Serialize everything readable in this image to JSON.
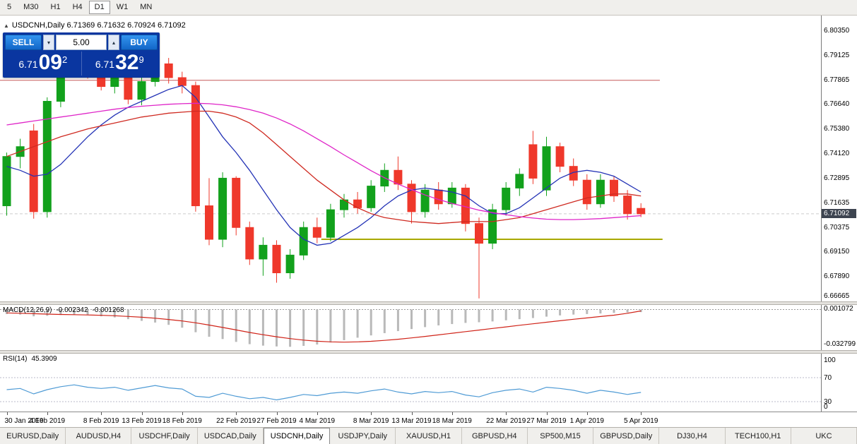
{
  "colors": {
    "candle_up": "#12a11c",
    "candle_down": "#ef382b",
    "ma_fast": "#2433b6",
    "ma_mid": "#cf2a21",
    "ma_slow": "#df25c8",
    "resistance_line": "#c65a5a",
    "support_line": "#a8a800",
    "macd_bar": "#b9b9b9",
    "macd_signal": "#d02318",
    "rsi_line": "#4f9bd5",
    "accent_blue": "#1a7be0",
    "panel_blue": "#0a36a0",
    "badge_bg": "#3d4450"
  },
  "toolbar": {
    "timeframes": [
      {
        "label": "5",
        "active": false
      },
      {
        "label": "M30",
        "active": false
      },
      {
        "label": "H1",
        "active": false
      },
      {
        "label": "H4",
        "active": false
      },
      {
        "label": "D1",
        "active": true
      },
      {
        "label": "W1",
        "active": false
      },
      {
        "label": "MN",
        "active": false
      }
    ]
  },
  "chart": {
    "symbol": "USDCNH",
    "period": "Daily",
    "title_line": "USDCNH,Daily 6.71369 6.71632 6.70924 6.71092",
    "ohlc": {
      "open": "6.71369",
      "high": "6.71632",
      "low": "6.70924",
      "close": "6.71092"
    }
  },
  "trade_panel": {
    "sell_label": "SELL",
    "buy_label": "BUY",
    "volume": "5.00",
    "sell_price": {
      "small": "6.71",
      "big": "09",
      "sup": "2"
    },
    "buy_price": {
      "small": "6.71",
      "big": "32",
      "sup": "9"
    }
  },
  "price_axis": {
    "labels": [
      "6.80350",
      "6.79125",
      "6.77865",
      "6.76640",
      "6.75380",
      "6.74120",
      "6.72895",
      "6.71635",
      "6.70375",
      "6.69150",
      "6.67890",
      "6.66665"
    ],
    "current": "6.71092"
  },
  "macd": {
    "label": "MACD(12,26,9)",
    "value_main": "-0.002342",
    "value_signal": "-0.001268",
    "axis_top": "0.001072",
    "axis_bottom": "-0.032799"
  },
  "rsi": {
    "label": "RSI(14)",
    "value": "45.3909",
    "axis": [
      "100",
      "70",
      "30",
      "0"
    ]
  },
  "tabs": [
    {
      "label": "EURUSD,Daily",
      "active": false
    },
    {
      "label": "AUDUSD,H4",
      "active": false
    },
    {
      "label": "USDCHF,Daily",
      "active": false
    },
    {
      "label": "USDCAD,Daily",
      "active": false
    },
    {
      "label": "USDCNH,Daily",
      "active": true
    },
    {
      "label": "USDJPY,Daily",
      "active": false
    },
    {
      "label": "XAUUSD,H1",
      "active": false
    },
    {
      "label": "GBPUSD,H4",
      "active": false
    },
    {
      "label": "SP500,M15",
      "active": false
    },
    {
      "label": "GBPUSD,Daily",
      "active": false
    },
    {
      "label": "DJ30,H4",
      "active": false
    },
    {
      "label": "TECH100,H1",
      "active": false
    },
    {
      "label": "UKC",
      "active": false
    }
  ],
  "chart_data": {
    "type": "candlestick",
    "symbol": "USDCNH",
    "timeframe": "Daily",
    "y_range": [
      6.6665,
      6.8115
    ],
    "bid": 6.71092,
    "candles": [
      [
        6.715,
        6.742,
        6.71,
        6.74
      ],
      [
        6.74,
        6.749,
        6.734,
        6.745
      ],
      [
        6.753,
        6.7565,
        6.7085,
        6.712
      ],
      [
        6.712,
        6.77,
        6.709,
        6.768
      ],
      [
        6.768,
        6.786,
        6.765,
        6.783
      ],
      [
        6.783,
        6.793,
        6.7805,
        6.7905
      ],
      [
        6.7905,
        6.792,
        6.7795,
        6.782
      ],
      [
        6.784,
        6.7895,
        6.7735,
        6.7755
      ],
      [
        6.7755,
        6.785,
        6.772,
        6.7815
      ],
      [
        6.7815,
        6.784,
        6.7665,
        6.769
      ],
      [
        6.769,
        6.7815,
        6.766,
        6.778
      ],
      [
        6.778,
        6.7905,
        6.7755,
        6.787
      ],
      [
        6.787,
        6.79,
        6.777,
        6.78
      ],
      [
        6.78,
        6.783,
        6.772,
        6.776
      ],
      [
        6.776,
        6.778,
        6.712,
        6.715
      ],
      [
        6.715,
        6.729,
        6.695,
        6.698
      ],
      [
        6.698,
        6.732,
        6.694,
        6.729
      ],
      [
        6.729,
        6.73,
        6.7,
        6.704
      ],
      [
        6.704,
        6.707,
        6.685,
        6.688
      ],
      [
        6.688,
        6.699,
        6.6795,
        6.695
      ],
      [
        6.695,
        6.6975,
        6.676,
        6.681
      ],
      [
        6.681,
        6.693,
        6.678,
        6.69
      ],
      [
        6.69,
        6.707,
        6.6875,
        6.704
      ],
      [
        6.704,
        6.709,
        6.696,
        6.699
      ],
      [
        6.699,
        6.716,
        6.697,
        6.713
      ],
      [
        6.713,
        6.721,
        6.709,
        6.718
      ],
      [
        6.718,
        6.722,
        6.711,
        6.714
      ],
      [
        6.714,
        6.728,
        6.712,
        6.725
      ],
      [
        6.725,
        6.7365,
        6.722,
        6.733
      ],
      [
        6.733,
        6.74,
        6.723,
        6.726
      ],
      [
        6.726,
        6.728,
        6.706,
        6.712
      ],
      [
        6.712,
        6.726,
        6.709,
        6.723
      ],
      [
        6.723,
        6.727,
        6.713,
        6.716
      ],
      [
        6.716,
        6.727,
        6.714,
        6.724
      ],
      [
        6.724,
        6.726,
        6.702,
        6.706
      ],
      [
        6.706,
        6.709,
        6.668,
        6.696
      ],
      [
        6.696,
        6.716,
        6.693,
        6.713
      ],
      [
        6.713,
        6.727,
        6.71,
        6.724
      ],
      [
        6.724,
        6.734,
        6.72,
        6.731
      ],
      [
        6.746,
        6.753,
        6.726,
        6.729
      ],
      [
        6.723,
        6.75,
        6.72,
        6.745
      ],
      [
        6.745,
        6.747,
        6.732,
        6.735
      ],
      [
        6.735,
        6.739,
        6.725,
        6.728
      ],
      [
        6.728,
        6.731,
        6.713,
        6.716
      ],
      [
        6.716,
        6.731,
        6.714,
        6.728
      ],
      [
        6.728,
        6.73,
        6.717,
        6.72
      ],
      [
        6.72,
        6.723,
        6.708,
        6.711
      ],
      [
        6.71369,
        6.71632,
        6.70924,
        6.71092
      ]
    ],
    "overlays": [
      {
        "name": "ma-fast",
        "color": "#2433b6",
        "values": [
          6.735,
          6.733,
          6.73,
          6.731,
          6.736,
          6.743,
          6.75,
          6.756,
          6.761,
          6.765,
          6.768,
          6.771,
          6.774,
          6.776,
          6.77,
          6.76,
          6.75,
          6.742,
          6.733,
          6.723,
          6.713,
          6.704,
          6.698,
          6.695,
          6.696,
          6.7,
          6.704,
          6.709,
          6.715,
          6.72,
          6.723,
          6.724,
          6.723,
          6.722,
          6.72,
          6.715,
          6.711,
          6.711,
          6.714,
          6.719,
          6.724,
          6.729,
          6.732,
          6.733,
          6.732,
          6.73,
          6.726,
          6.722
        ]
      },
      {
        "name": "ma-mid",
        "color": "#cf2a21",
        "values": [
          6.74,
          6.7425,
          6.745,
          6.7475,
          6.75,
          6.752,
          6.754,
          6.7555,
          6.757,
          6.7585,
          6.76,
          6.761,
          6.762,
          6.7625,
          6.763,
          6.763,
          6.762,
          6.76,
          6.757,
          6.752,
          6.746,
          6.74,
          6.734,
          6.728,
          6.723,
          6.718,
          6.714,
          6.711,
          6.709,
          6.708,
          6.707,
          6.7065,
          6.706,
          6.7065,
          6.707,
          6.707,
          6.707,
          6.708,
          6.709,
          6.711,
          6.713,
          6.715,
          6.717,
          6.719,
          6.72,
          6.721,
          6.721,
          6.72
        ]
      },
      {
        "name": "ma-slow",
        "color": "#df25c8",
        "values": [
          6.756,
          6.757,
          6.758,
          6.759,
          6.76,
          6.761,
          6.762,
          6.763,
          6.764,
          6.7648,
          6.7655,
          6.766,
          6.7665,
          6.7668,
          6.767,
          6.7668,
          6.7662,
          6.7652,
          6.7638,
          6.762,
          6.7595,
          6.7565,
          6.753,
          6.749,
          6.745,
          6.7408,
          6.7368,
          6.7328,
          6.7292,
          6.726,
          6.7232,
          6.7205,
          6.7182,
          6.7162,
          6.7145,
          6.7128,
          6.7115,
          6.7105,
          6.7095,
          6.7088,
          6.7082,
          6.708,
          6.708,
          6.7082,
          6.7085,
          6.709,
          6.7095,
          6.71
        ]
      }
    ],
    "hlines": [
      {
        "name": "resistance-line",
        "price": 6.77865,
        "from_index": -0.6,
        "to_index": 48.4,
        "color": "#c65a5a",
        "width": 1
      },
      {
        "name": "support-line",
        "price": 6.698,
        "from_index": 23.6,
        "to_index": 48.6,
        "color": "#a8a800",
        "width": 2
      }
    ],
    "date_labels": [
      [
        0,
        "30 Jan 2019"
      ],
      [
        3,
        "4 Feb 2019"
      ],
      [
        7,
        "8 Feb 2019"
      ],
      [
        10,
        "13 Feb 2019"
      ],
      [
        13,
        "18 Feb 2019"
      ],
      [
        17,
        "22 Feb 2019"
      ],
      [
        20,
        "27 Feb 2019"
      ],
      [
        23,
        "4 Mar 2019"
      ],
      [
        27,
        "8 Mar 2019"
      ],
      [
        30,
        "13 Mar 2019"
      ],
      [
        33,
        "18 Mar 2019"
      ],
      [
        37,
        "22 Mar 2019"
      ],
      [
        40,
        "27 Mar 2019"
      ],
      [
        43,
        "1 Apr 2019"
      ],
      [
        47,
        "5 Apr 2019"
      ]
    ],
    "macd": {
      "range": [
        -0.0345,
        0.004
      ],
      "histogram": [
        -0.004,
        -0.0045,
        -0.006,
        -0.0055,
        -0.0048,
        -0.0045,
        -0.005,
        -0.006,
        -0.007,
        -0.0085,
        -0.01,
        -0.0115,
        -0.0135,
        -0.016,
        -0.02,
        -0.024,
        -0.026,
        -0.0285,
        -0.0305,
        -0.0318,
        -0.0325,
        -0.0328,
        -0.032,
        -0.0308,
        -0.029,
        -0.027,
        -0.0248,
        -0.0228,
        -0.0208,
        -0.019,
        -0.0172,
        -0.0155,
        -0.014,
        -0.0128,
        -0.0118,
        -0.0112,
        -0.0105,
        -0.0095,
        -0.0085,
        -0.0075,
        -0.0063,
        -0.0052,
        -0.0045,
        -0.004,
        -0.0035,
        -0.003,
        -0.0026,
        -0.0023
      ],
      "signal": [
        -0.003,
        -0.0033,
        -0.0037,
        -0.0041,
        -0.0044,
        -0.0046,
        -0.0048,
        -0.0051,
        -0.0055,
        -0.0061,
        -0.0068,
        -0.0077,
        -0.0088,
        -0.0101,
        -0.0117,
        -0.0137,
        -0.0158,
        -0.018,
        -0.0202,
        -0.0222,
        -0.024,
        -0.0256,
        -0.0269,
        -0.0279,
        -0.0285,
        -0.0287,
        -0.0285,
        -0.028,
        -0.0272,
        -0.0262,
        -0.025,
        -0.0237,
        -0.0223,
        -0.0209,
        -0.0195,
        -0.0181,
        -0.0167,
        -0.0153,
        -0.0139,
        -0.0126,
        -0.0112,
        -0.0099,
        -0.0086,
        -0.0074,
        -0.0062,
        -0.005,
        -0.0033,
        -0.0013
      ]
    },
    "rsi": {
      "range": [
        0,
        100
      ],
      "levels": [
        70,
        30
      ],
      "values": [
        50,
        52,
        43,
        50,
        55,
        58,
        54,
        52,
        54,
        49,
        53,
        57,
        53,
        51,
        39,
        37,
        44,
        39,
        35,
        37,
        33,
        37,
        42,
        40,
        44,
        46,
        44,
        48,
        51,
        46,
        43,
        47,
        45,
        47,
        41,
        38,
        45,
        49,
        51,
        46,
        54,
        52,
        49,
        44,
        49,
        46,
        42,
        45.4
      ]
    }
  }
}
